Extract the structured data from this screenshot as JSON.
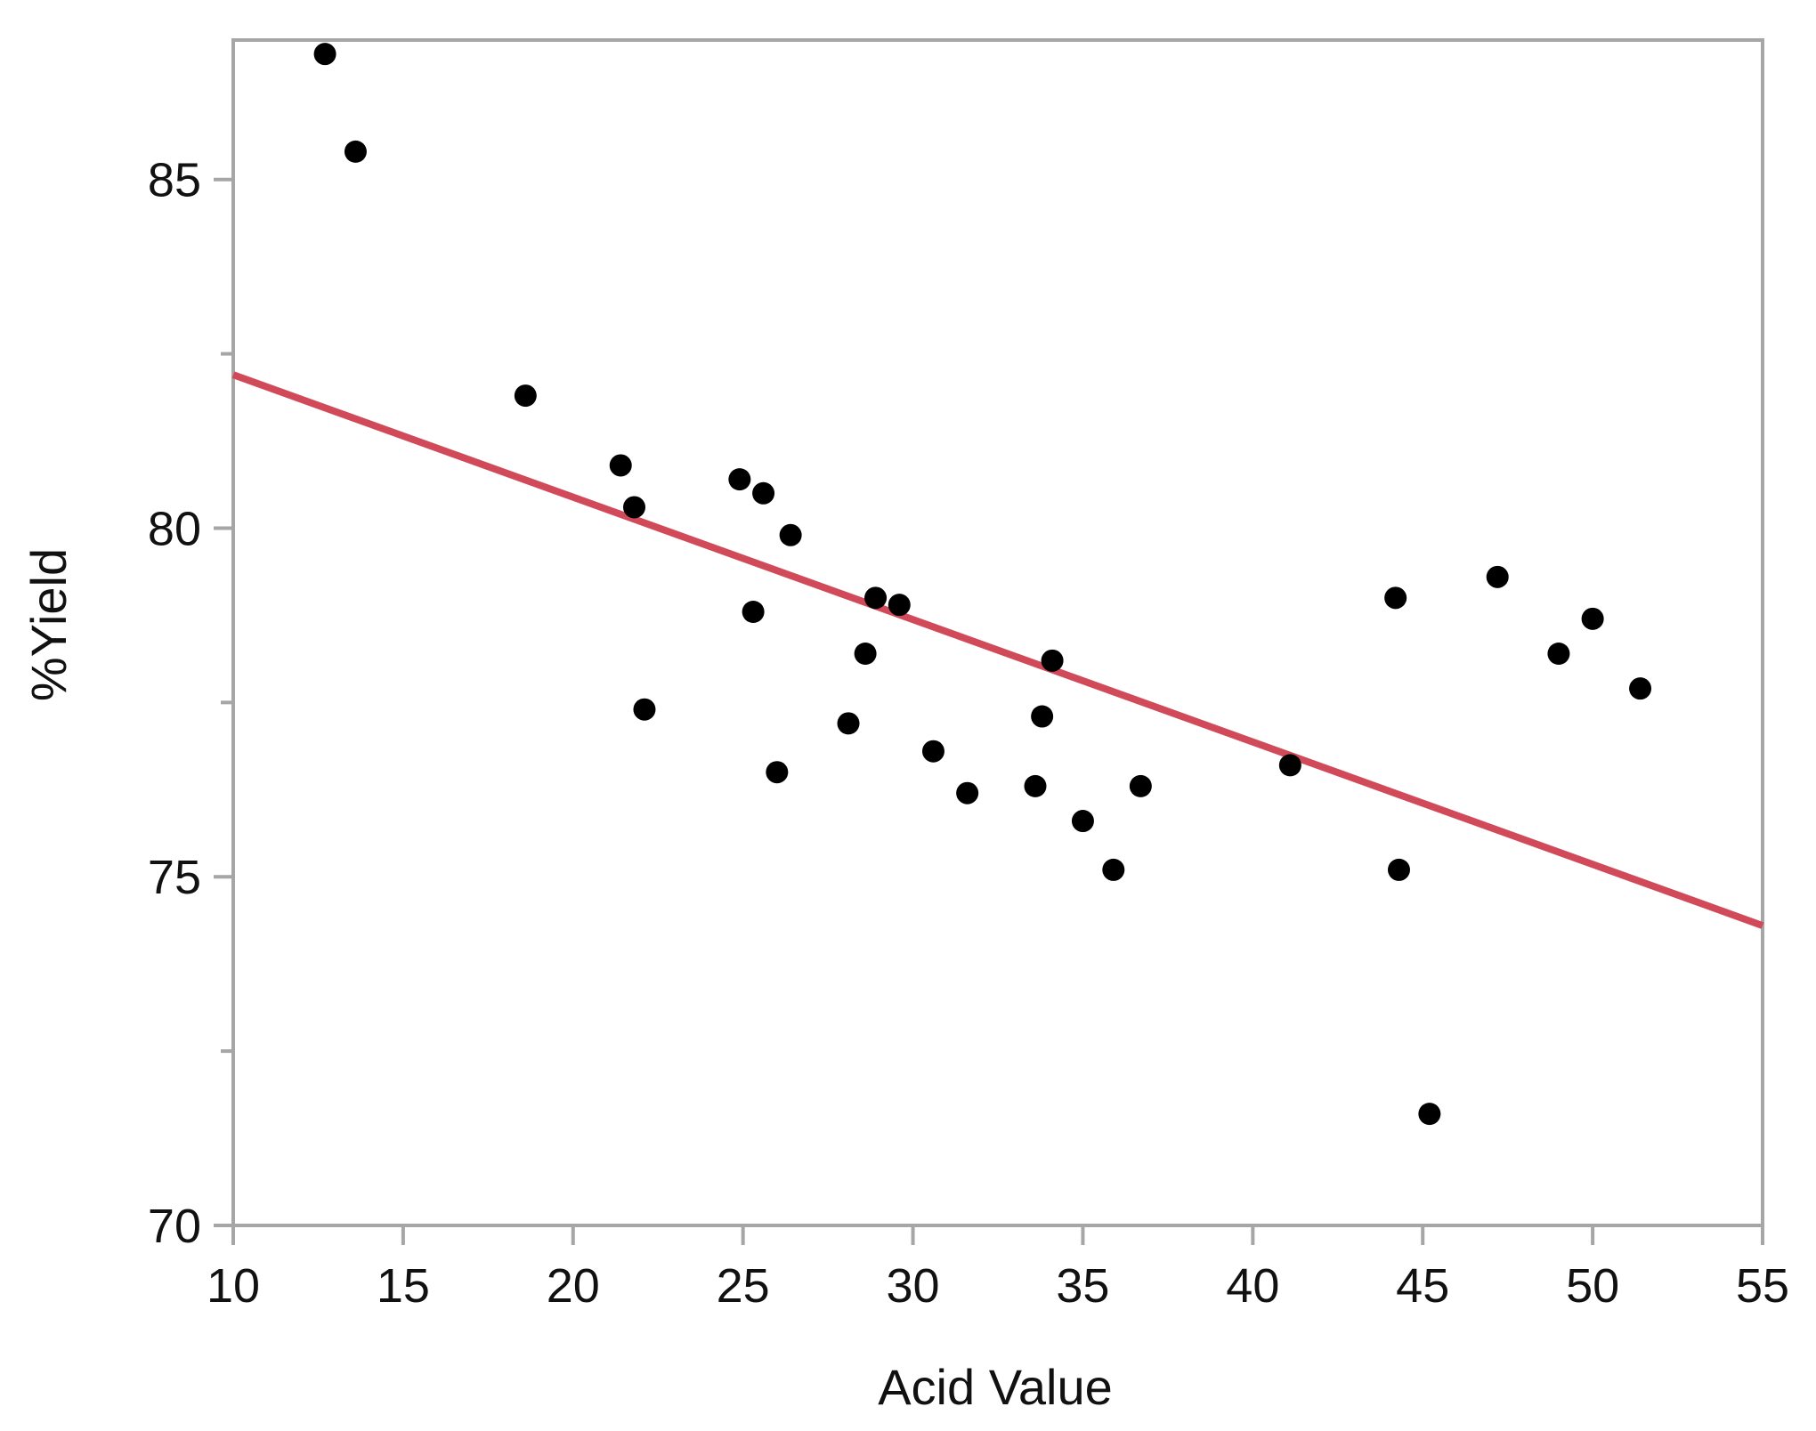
{
  "chart_data": {
    "type": "scatter",
    "title": "",
    "xlabel": "Acid Value",
    "ylabel": "%Yield",
    "xlim": [
      10,
      55
    ],
    "ylim": [
      70,
      87
    ],
    "x_ticks": [
      "10",
      "15",
      "20",
      "25",
      "30",
      "35",
      "40",
      "45",
      "50",
      "55"
    ],
    "y_ticks": [
      "70",
      "75",
      "80",
      "85"
    ],
    "y_minor_ticks": [
      72.5,
      77.5,
      82.5
    ],
    "grid": false,
    "points": [
      {
        "x": 12.7,
        "y": 86.8
      },
      {
        "x": 13.6,
        "y": 85.4
      },
      {
        "x": 18.6,
        "y": 81.9
      },
      {
        "x": 21.4,
        "y": 80.9
      },
      {
        "x": 21.8,
        "y": 80.3
      },
      {
        "x": 22.1,
        "y": 77.4
      },
      {
        "x": 24.9,
        "y": 80.7
      },
      {
        "x": 25.3,
        "y": 78.8
      },
      {
        "x": 25.6,
        "y": 80.5
      },
      {
        "x": 26.0,
        "y": 76.5
      },
      {
        "x": 26.4,
        "y": 79.9
      },
      {
        "x": 28.1,
        "y": 77.2
      },
      {
        "x": 28.6,
        "y": 78.2
      },
      {
        "x": 28.9,
        "y": 79.0
      },
      {
        "x": 29.6,
        "y": 78.9
      },
      {
        "x": 30.6,
        "y": 76.8
      },
      {
        "x": 31.6,
        "y": 76.2
      },
      {
        "x": 33.6,
        "y": 76.3
      },
      {
        "x": 33.8,
        "y": 77.3
      },
      {
        "x": 34.1,
        "y": 78.1
      },
      {
        "x": 35.0,
        "y": 75.8
      },
      {
        "x": 35.9,
        "y": 75.1
      },
      {
        "x": 36.7,
        "y": 76.3
      },
      {
        "x": 41.1,
        "y": 76.6
      },
      {
        "x": 44.2,
        "y": 79.0
      },
      {
        "x": 44.3,
        "y": 75.1
      },
      {
        "x": 45.2,
        "y": 71.6
      },
      {
        "x": 47.2,
        "y": 79.3
      },
      {
        "x": 49.0,
        "y": 78.2
      },
      {
        "x": 50.0,
        "y": 78.7
      },
      {
        "x": 51.4,
        "y": 77.7
      }
    ],
    "fit_line": {
      "x": [
        10,
        55
      ],
      "y": [
        82.2,
        74.3
      ]
    },
    "colors": {
      "points": "#000000",
      "fit_line": "#d14a5a",
      "axes": "#a6a6a6"
    }
  }
}
